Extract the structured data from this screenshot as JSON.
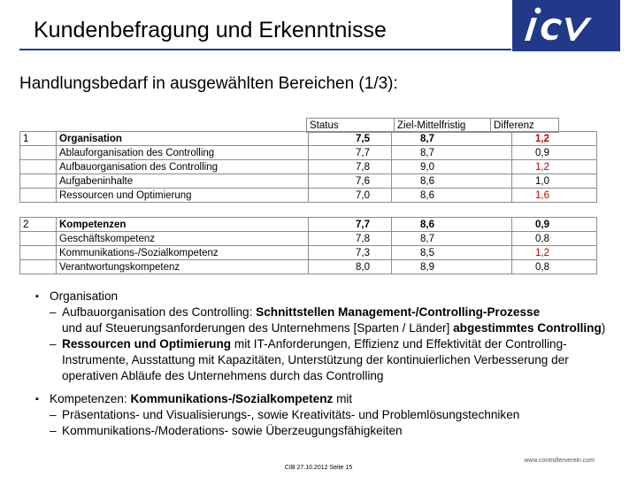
{
  "title": "Kundenbefragung und Erkenntnisse",
  "subtitle": "Handlungsbedarf in ausgewählten Bereichen (1/3):",
  "logo_text": "icv",
  "table": {
    "headers": [
      "Status",
      "Ziel-Mittelfristig",
      "Differenz"
    ],
    "group1": {
      "rows": [
        {
          "num": "1",
          "label": "Organisation",
          "status": "7,5",
          "ziel": "8,7",
          "diff": "1,2"
        },
        {
          "num": "",
          "label": "Ablauforganisation des Controlling",
          "status": "7,7",
          "ziel": "8,7",
          "diff": "0,9"
        },
        {
          "num": "",
          "label": "Aufbauorganisation des Controlling",
          "status": "7,8",
          "ziel": "9,0",
          "diff": "1,2"
        },
        {
          "num": "",
          "label": "Aufgabeninhalte",
          "status": "7,6",
          "ziel": "8,6",
          "diff": "1,0"
        },
        {
          "num": "",
          "label": "Ressourcen und Optimierung",
          "status": "7,0",
          "ziel": "8,6",
          "diff": "1,6"
        }
      ]
    },
    "group2": {
      "rows": [
        {
          "num": "2",
          "label": "Kompetenzen",
          "status": "7,7",
          "ziel": "8,6",
          "diff": "0,9"
        },
        {
          "num": "",
          "label": "Geschäftskompetenz",
          "status": "7,8",
          "ziel": "8,7",
          "diff": "0,8"
        },
        {
          "num": "",
          "label": "Kommunikations-/Sozialkompetenz",
          "status": "7,3",
          "ziel": "8,5",
          "diff": "1,2"
        },
        {
          "num": "",
          "label": "Verantwortungskompetenz",
          "status": "8,0",
          "ziel": "8,9",
          "diff": "0,8"
        }
      ]
    }
  },
  "bullets": {
    "b1": "Organisation",
    "b1_s1_a": "Aufbauorganisation des Controlling: ",
    "b1_s1_b": "Schnittstellen Management-/Controlling-Prozesse",
    "b1_s1_c": "und auf Steuerungsanforderungen des Unternehmens [Sparten / Länder] ",
    "b1_s1_d": "abgestimmtes Controlling",
    "b1_s1_e": ")",
    "b1_s2_a": "Ressourcen und Optimierung",
    "b1_s2_b": " mit IT-Anforderungen, Effizienz und Effektivität der Controlling-Instrumente, Ausstattung mit Kapazitäten, Unterstützung der kontinuierlichen Verbesserung der operativen Abläufe des Unternehmens durch das Controlling",
    "b2_a": "Kompetenzen: ",
    "b2_b": "Kommunikations-/Sozialkompetenz",
    "b2_c": " mit",
    "b2_s1": "Präsentations- und Visualisierungs-, sowie Kreativitäts- und Problemlösungstechniken",
    "b2_s2": "Kommunikations-/Moderations- sowie Überzeugungsfähigkeiten"
  },
  "footer": "CIB 27.10.2012 Seite 15",
  "website": "www.controllerverein.com"
}
